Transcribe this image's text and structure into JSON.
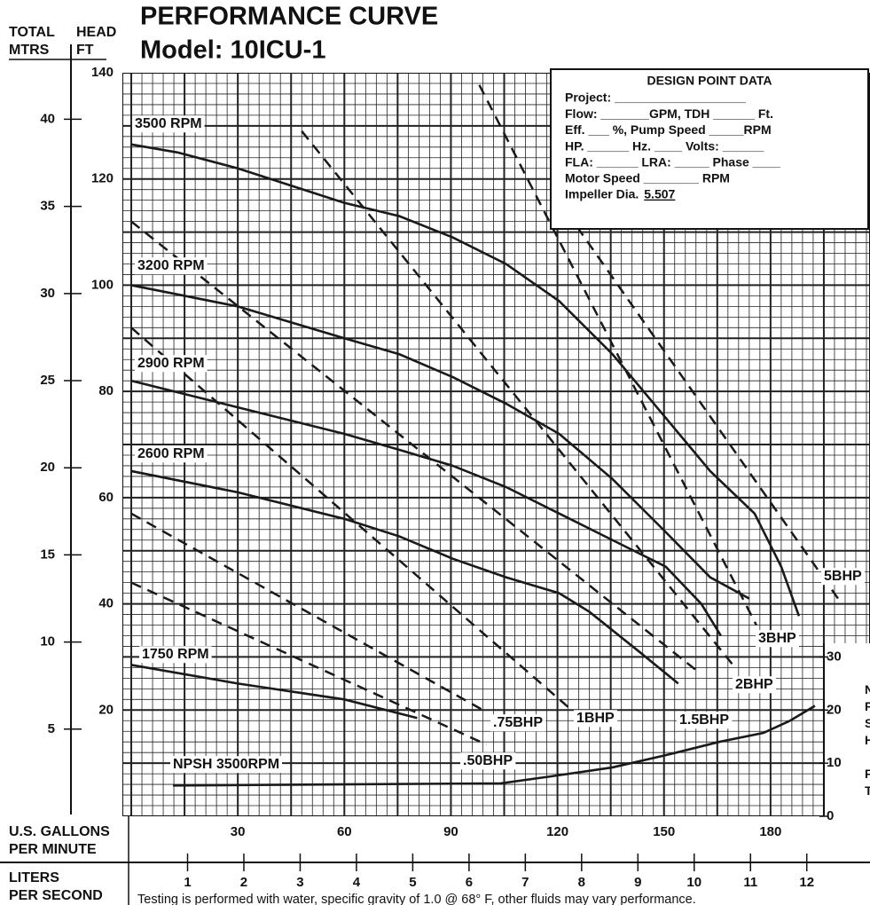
{
  "chart_data": {
    "type": "line",
    "title": "PERFORMANCE CURVE",
    "subtitle": "Model: 10ICU-1",
    "y_axis_header": {
      "left": "TOTAL",
      "left_unit": "MTRS",
      "right": "HEAD",
      "right_unit": "FT"
    },
    "x_label": [
      "U.S. GALLONS",
      "PER MINUTE"
    ],
    "x2_label": [
      "LITERS",
      "PER SECOND"
    ],
    "npsh_axis_label": "NPSH FT",
    "footnote": "Testing is performed with water, specific gravity of 1.0 @ 68° F, other fluids may vary performance.",
    "xlim": [
      -2.5,
      208
    ],
    "xticks": [
      30,
      60,
      90,
      120,
      150,
      180
    ],
    "ylim": [
      0,
      140
    ],
    "yticks": [
      20,
      40,
      60,
      80,
      100,
      120,
      140
    ],
    "y2lim": [
      0,
      42.67
    ],
    "y2ticks": [
      5,
      10,
      15,
      20,
      25,
      30,
      35,
      40
    ],
    "x2lim": [
      -0.158,
      13.123
    ],
    "x2ticks": [
      1,
      2,
      3,
      4,
      5,
      6,
      7,
      8,
      9,
      10,
      11,
      12
    ],
    "npsh_ticks": [
      0,
      10,
      20,
      30
    ],
    "grid": {
      "x_minor": 3,
      "y_minor": 2,
      "x_major": 15,
      "y_major": 10
    },
    "color": "#1a1a1a",
    "series": [
      {
        "name": "3500 RPM",
        "x": [
          0,
          13,
          30,
          60,
          75.5,
          90.5,
          105.5,
          120.5,
          135.5,
          150.5,
          163,
          175.5,
          183,
          188
        ],
        "values": [
          126.5,
          125,
          122,
          115.5,
          113,
          109,
          104,
          97,
          87,
          75,
          65,
          57,
          47,
          37.7
        ]
      },
      {
        "name": "3200 RPM",
        "x": [
          0,
          30,
          60,
          75.5,
          90.5,
          105.5,
          120.5,
          135.5,
          150.5,
          163,
          174
        ],
        "values": [
          100,
          96,
          90,
          87,
          82.7,
          77.7,
          72,
          63.5,
          53.5,
          45,
          41
        ]
      },
      {
        "name": "2900 RPM",
        "x": [
          0,
          30,
          60,
          75.5,
          90.5,
          105.5,
          120.5,
          135.5,
          150.5,
          160.5,
          166
        ],
        "values": [
          82,
          77,
          72,
          69,
          66,
          62,
          57,
          52,
          47,
          40,
          34
        ]
      },
      {
        "name": "2600 RPM",
        "x": [
          0,
          30,
          60,
          75.5,
          90.5,
          105.5,
          120.5,
          129,
          143,
          154
        ],
        "values": [
          65,
          61,
          56,
          52.7,
          48.5,
          45,
          42,
          38.5,
          31,
          25
        ]
      },
      {
        "name": "1750 RPM",
        "x": [
          0,
          30,
          60,
          80.5
        ],
        "values": [
          28.5,
          25,
          22,
          18.5
        ]
      },
      {
        "name": "NPSH  3500RPM",
        "x": [
          11.75,
          104,
          118,
          135.5,
          150.5,
          165.5,
          178,
          185.5,
          192.5
        ],
        "values": [
          5.8,
          6.2,
          7.5,
          9.2,
          11.5,
          14,
          15.7,
          18,
          20.8
        ]
      }
    ],
    "power_lines": [
      {
        "name": ".50BHP",
        "x": [
          0,
          100
        ],
        "values": [
          44,
          13.5
        ]
      },
      {
        "name": ".75BHP",
        "x": [
          0,
          99
        ],
        "values": [
          57,
          20
        ]
      },
      {
        "name": "1BHP",
        "x": [
          0,
          124
        ],
        "values": [
          92,
          20
        ]
      },
      {
        "name": "1.5BHP",
        "x": [
          0,
          160
        ],
        "values": [
          112,
          27
        ]
      },
      {
        "name": "2BHP",
        "x": [
          48,
          170
        ],
        "values": [
          129,
          28
        ]
      },
      {
        "name": "3BHP",
        "x": [
          98,
          176
        ],
        "values": [
          137.7,
          36
        ]
      },
      {
        "name": "5BHP",
        "x": [
          125.5,
          199
        ],
        "values": [
          111,
          41
        ]
      }
    ],
    "design_point": {
      "title": "DESIGN POINT DATA",
      "lines": [
        "Project: ___________________",
        "Flow: _______GPM, TDH ______ Ft.",
        "Eff. ___ %, Pump Speed _____RPM",
        "HP. ______ Hz. ____ Volts: ______",
        "FLA: ______ LRA: _____ Phase ____",
        "Motor Speed ________ RPM"
      ],
      "impeller_label": "Impeller Dia.",
      "impeller_value": "5.507"
    }
  }
}
